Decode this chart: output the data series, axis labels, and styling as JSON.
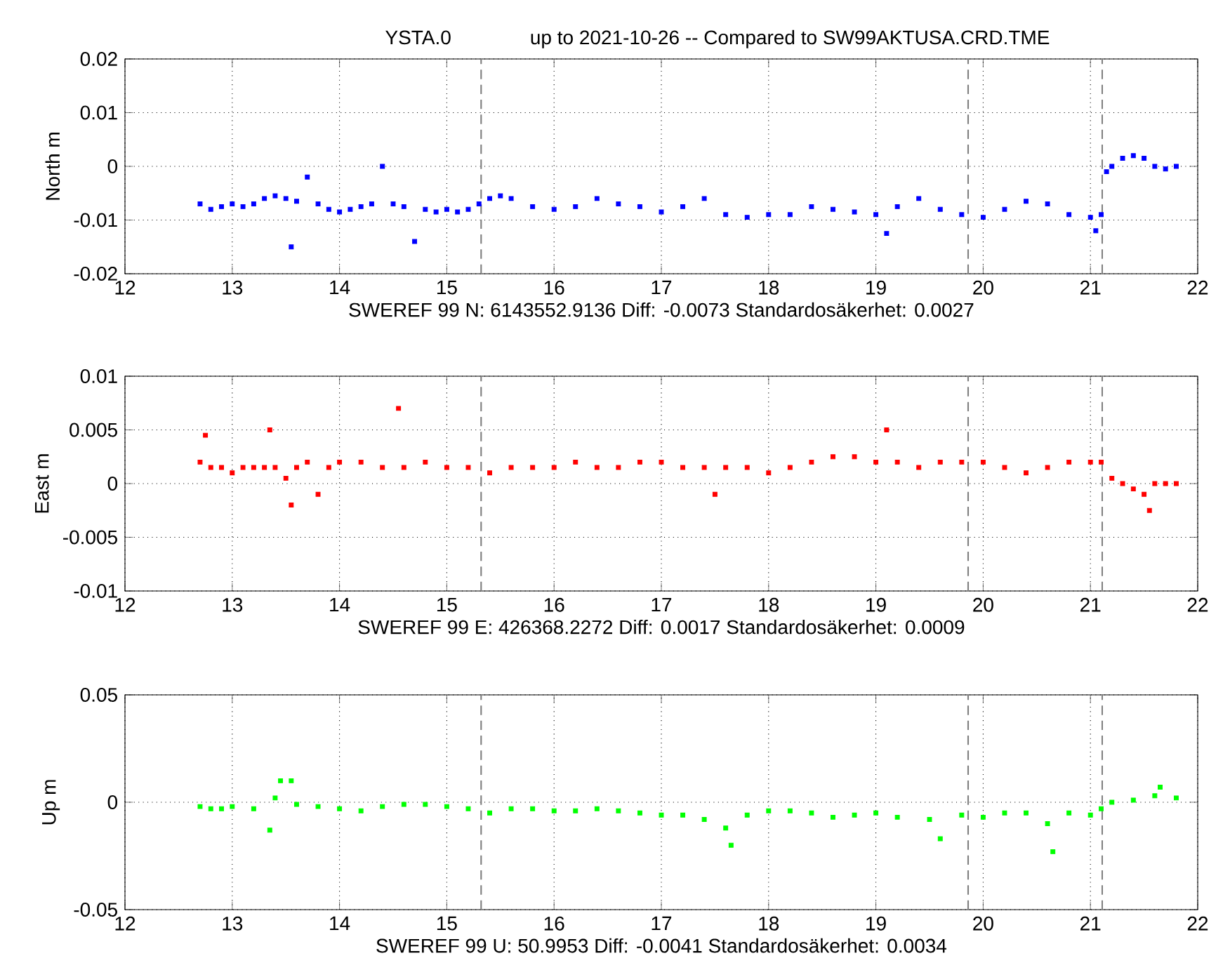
{
  "chart_data": [
    {
      "type": "scatter",
      "title": "YSTA.0",
      "subtitle": "up to 2021-10-26 -- Compared to SW99AKTUSA.CRD.TME",
      "xlabel": "SWEREF 99 N: 6143552.9136 Diff: -0.0073 Standardosäkerhet: 0.0027",
      "ylabel": "North m",
      "color": "#0000ff",
      "marker": "square",
      "grid": true,
      "xlim": [
        12,
        22
      ],
      "xticks": [
        12,
        13,
        14,
        15,
        16,
        17,
        18,
        19,
        20,
        21,
        22
      ],
      "ylim": [
        -0.02,
        0.02
      ],
      "yticks": [
        -0.02,
        -0.01,
        0,
        0.01,
        0.02
      ],
      "ref_lines": [
        {
          "axis": "x",
          "value": 15.32,
          "color": "#808080",
          "line_style": "dashed"
        },
        {
          "axis": "x",
          "value": 19.86,
          "color": "#808080",
          "line_style": "dashed"
        },
        {
          "axis": "x",
          "value": 21.11,
          "color": "#808080",
          "line_style": "dashed"
        }
      ],
      "x": [
        12.7,
        12.8,
        12.9,
        13.0,
        13.1,
        13.2,
        13.3,
        13.4,
        13.5,
        13.55,
        13.6,
        13.7,
        13.8,
        13.9,
        14.0,
        14.1,
        14.2,
        14.3,
        14.4,
        14.5,
        14.6,
        14.7,
        14.8,
        14.9,
        15.0,
        15.1,
        15.2,
        15.3,
        15.4,
        15.5,
        15.6,
        15.8,
        16.0,
        16.2,
        16.4,
        16.6,
        16.8,
        17.0,
        17.2,
        17.4,
        17.6,
        17.8,
        18.0,
        18.2,
        18.4,
        18.6,
        18.8,
        19.0,
        19.1,
        19.2,
        19.4,
        19.6,
        19.8,
        20.0,
        20.2,
        20.4,
        20.6,
        20.8,
        21.0,
        21.05,
        21.1,
        21.15,
        21.2,
        21.3,
        21.4,
        21.5,
        21.6,
        21.7,
        21.8
      ],
      "values": [
        -0.007,
        -0.008,
        -0.0075,
        -0.007,
        -0.0075,
        -0.007,
        -0.006,
        -0.0055,
        -0.006,
        -0.015,
        -0.0065,
        -0.002,
        -0.007,
        -0.008,
        -0.0085,
        -0.008,
        -0.0075,
        -0.007,
        0.0,
        -0.007,
        -0.0075,
        -0.014,
        -0.008,
        -0.0085,
        -0.008,
        -0.0085,
        -0.008,
        -0.007,
        -0.006,
        -0.0055,
        -0.006,
        -0.0075,
        -0.008,
        -0.0075,
        -0.006,
        -0.007,
        -0.0075,
        -0.0085,
        -0.0075,
        -0.006,
        -0.009,
        -0.0095,
        -0.009,
        -0.009,
        -0.0075,
        -0.008,
        -0.0085,
        -0.009,
        -0.0125,
        -0.0075,
        -0.006,
        -0.008,
        -0.009,
        -0.0095,
        -0.008,
        -0.0065,
        -0.007,
        -0.009,
        -0.0095,
        -0.012,
        -0.009,
        -0.001,
        0.0,
        0.0015,
        0.002,
        0.0015,
        0.0,
        -0.0005,
        0.0
      ]
    },
    {
      "type": "scatter",
      "xlabel": "SWEREF 99 E: 426368.2272 Diff: 0.0017 Standardosäkerhet: 0.0009",
      "ylabel": "East m",
      "color": "#ff0000",
      "marker": "square",
      "grid": true,
      "xlim": [
        12,
        22
      ],
      "xticks": [
        12,
        13,
        14,
        15,
        16,
        17,
        18,
        19,
        20,
        21,
        22
      ],
      "ylim": [
        -0.01,
        0.01
      ],
      "yticks": [
        -0.01,
        -0.005,
        0,
        0.005,
        0.01
      ],
      "ref_lines": [
        {
          "axis": "x",
          "value": 15.32,
          "color": "#808080",
          "line_style": "dashed"
        },
        {
          "axis": "x",
          "value": 19.86,
          "color": "#808080",
          "line_style": "dashed"
        },
        {
          "axis": "x",
          "value": 21.11,
          "color": "#808080",
          "line_style": "dashed"
        }
      ],
      "x": [
        12.7,
        12.75,
        12.8,
        12.9,
        13.0,
        13.1,
        13.2,
        13.3,
        13.35,
        13.4,
        13.5,
        13.55,
        13.6,
        13.7,
        13.8,
        13.9,
        14.0,
        14.2,
        14.4,
        14.55,
        14.6,
        14.8,
        15.0,
        15.2,
        15.4,
        15.6,
        15.8,
        16.0,
        16.2,
        16.4,
        16.6,
        16.8,
        17.0,
        17.2,
        17.4,
        17.5,
        17.6,
        17.8,
        18.0,
        18.2,
        18.4,
        18.6,
        18.8,
        19.0,
        19.1,
        19.2,
        19.4,
        19.6,
        19.8,
        20.0,
        20.2,
        20.4,
        20.6,
        20.8,
        21.0,
        21.1,
        21.2,
        21.3,
        21.4,
        21.5,
        21.55,
        21.6,
        21.7,
        21.8
      ],
      "values": [
        0.002,
        0.0045,
        0.0015,
        0.0015,
        0.001,
        0.0015,
        0.0015,
        0.0015,
        0.005,
        0.0015,
        0.0005,
        -0.002,
        0.0015,
        0.002,
        -0.001,
        0.0015,
        0.002,
        0.002,
        0.0015,
        0.007,
        0.0015,
        0.002,
        0.0015,
        0.0015,
        0.001,
        0.0015,
        0.0015,
        0.0015,
        0.002,
        0.0015,
        0.0015,
        0.002,
        0.002,
        0.0015,
        0.0015,
        -0.001,
        0.0015,
        0.0015,
        0.001,
        0.0015,
        0.002,
        0.0025,
        0.0025,
        0.002,
        0.005,
        0.002,
        0.0015,
        0.002,
        0.002,
        0.002,
        0.0015,
        0.001,
        0.0015,
        0.002,
        0.002,
        0.002,
        0.0005,
        0.0,
        -0.0005,
        -0.001,
        -0.0025,
        0.0,
        0.0,
        0.0
      ]
    },
    {
      "type": "scatter",
      "xlabel": "SWEREF 99 U: 50.9953 Diff: -0.0041 Standardosäkerhet: 0.0034",
      "ylabel": "Up m",
      "color": "#00ff00",
      "marker": "square",
      "grid": true,
      "xlim": [
        12,
        22
      ],
      "xticks": [
        12,
        13,
        14,
        15,
        16,
        17,
        18,
        19,
        20,
        21,
        22
      ],
      "ylim": [
        -0.05,
        0.05
      ],
      "yticks": [
        -0.05,
        0,
        0.05
      ],
      "ref_lines": [
        {
          "axis": "x",
          "value": 15.32,
          "color": "#808080",
          "line_style": "dashed"
        },
        {
          "axis": "x",
          "value": 19.86,
          "color": "#808080",
          "line_style": "dashed"
        },
        {
          "axis": "x",
          "value": 21.11,
          "color": "#808080",
          "line_style": "dashed"
        }
      ],
      "x": [
        12.7,
        12.8,
        12.9,
        13.0,
        13.2,
        13.35,
        13.4,
        13.45,
        13.55,
        13.6,
        13.8,
        14.0,
        14.2,
        14.4,
        14.6,
        14.8,
        15.0,
        15.2,
        15.4,
        15.6,
        15.8,
        16.0,
        16.2,
        16.4,
        16.6,
        16.8,
        17.0,
        17.2,
        17.4,
        17.6,
        17.65,
        17.8,
        18.0,
        18.2,
        18.4,
        18.6,
        18.8,
        19.0,
        19.2,
        19.5,
        19.6,
        19.8,
        20.0,
        20.2,
        20.4,
        20.6,
        20.65,
        20.8,
        21.0,
        21.1,
        21.2,
        21.4,
        21.6,
        21.65,
        21.8
      ],
      "values": [
        -0.002,
        -0.003,
        -0.003,
        -0.002,
        -0.003,
        -0.013,
        0.002,
        0.01,
        0.01,
        -0.001,
        -0.002,
        -0.003,
        -0.004,
        -0.002,
        -0.001,
        -0.001,
        -0.002,
        -0.003,
        -0.005,
        -0.003,
        -0.003,
        -0.004,
        -0.004,
        -0.003,
        -0.004,
        -0.005,
        -0.006,
        -0.006,
        -0.008,
        -0.012,
        -0.02,
        -0.006,
        -0.004,
        -0.004,
        -0.005,
        -0.007,
        -0.006,
        -0.005,
        -0.007,
        -0.008,
        -0.017,
        -0.006,
        -0.007,
        -0.005,
        -0.005,
        -0.01,
        -0.023,
        -0.005,
        -0.006,
        -0.003,
        0.0,
        0.001,
        0.003,
        0.007,
        0.002
      ]
    }
  ]
}
